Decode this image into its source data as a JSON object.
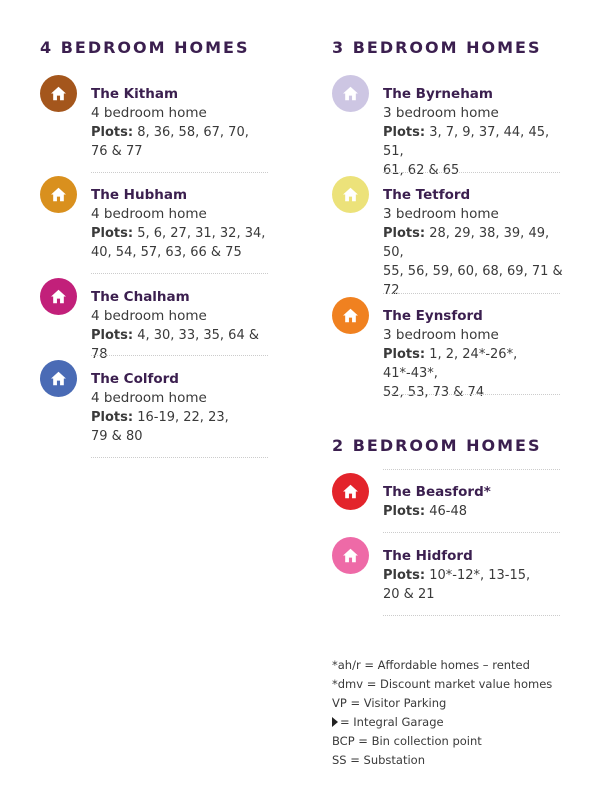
{
  "left_column": {
    "heading": "4 BEDROOM HOMES",
    "homes": [
      {
        "name": "The Kitham",
        "type": "4 bedroom home",
        "plots_label": "Plots:",
        "plots_lines": [
          "8, 36, 58, 67, 70,",
          "76 & 77"
        ],
        "color": "#a4561c"
      },
      {
        "name": "The Hubham",
        "type": "4 bedroom home",
        "plots_label": "Plots:",
        "plots_lines": [
          "5, 6, 27, 31, 32, 34,",
          "40, 54, 57, 63, 66 & 75"
        ],
        "color": "#d9901e"
      },
      {
        "name": "The Chalham",
        "type": "4 bedroom home",
        "plots_label": "Plots:",
        "plots_lines": [
          "4, 30, 33, 35, 64 & 78"
        ],
        "color": "#c2207a"
      },
      {
        "name": "The Colford",
        "type": "4 bedroom home",
        "plots_label": "Plots:",
        "plots_lines": [
          "16-19, 22, 23,",
          "79 & 80"
        ],
        "color": "#4a6bb5"
      }
    ]
  },
  "right_column": {
    "heading_3bed": "3 BEDROOM HOMES",
    "homes_3bed": [
      {
        "name": "The Byrneham",
        "type": "3 bedroom home",
        "plots_label": "Plots:",
        "plots_lines": [
          "3, 7, 9, 37, 44, 45, 51,",
          "61, 62 & 65"
        ],
        "color": "#cdc6e3"
      },
      {
        "name": "The Tetford",
        "type": "3 bedroom home",
        "plots_label": "Plots:",
        "plots_lines": [
          "28, 29, 38, 39, 49, 50,",
          "55, 56, 59, 60, 68, 69, 71 &",
          "72"
        ],
        "color": "#ece27a"
      },
      {
        "name": "The Eynsford",
        "type": "3 bedroom home",
        "plots_label": "Plots:",
        "plots_lines": [
          "1, 2, 24*-26*, 41*-43*,",
          "52, 53, 73 & 74"
        ],
        "color": "#f08120"
      }
    ],
    "heading_2bed": "2 BEDROOM HOMES",
    "homes_2bed": [
      {
        "name": "The Beasford*",
        "plots_label": "Plots:",
        "plots_lines": [
          "46-48"
        ],
        "color": "#e3242b"
      },
      {
        "name": "The Hidford",
        "plots_label": "Plots:",
        "plots_lines": [
          "10*-12*, 13-15,",
          "20 & 21"
        ],
        "color": "#ee6aa7"
      }
    ]
  },
  "notes": [
    "*ah/r = Affordable homes – rented",
    "*dmv = Discount market value homes",
    "VP = Visitor Parking",
    "= Integral Garage",
    "BCP = Bin collection point",
    "SS = Substation"
  ],
  "icons": {
    "home": "house-icon",
    "garage": "triangle-right-icon"
  }
}
